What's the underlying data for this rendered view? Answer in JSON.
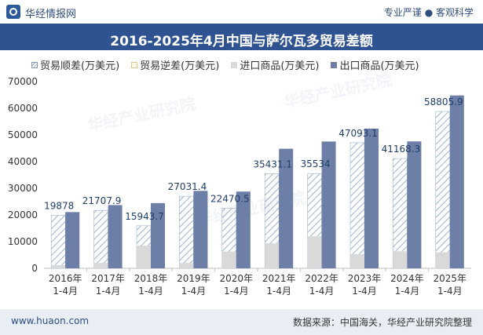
{
  "header": {
    "brand": "华经情报网",
    "slogan": "专业严谨 ● 客观科学"
  },
  "footer": {
    "site": "www.huaon.com",
    "source": "数据来源：中国海关，华经产业研究院整理"
  },
  "watermark": "华经产业研究院",
  "colors": {
    "surplus_hatch": "#9fb1cc",
    "deficit": "#fff9e6",
    "import": "#d9d9d9",
    "export": "#6d7fa6",
    "title_band": "#2f5390"
  },
  "chart_data": {
    "type": "bar",
    "title": "2016-2025年4月中国与萨尔瓦多贸易差额",
    "categories": [
      [
        "2016年",
        "1-4月"
      ],
      [
        "2017年",
        "1-4月"
      ],
      [
        "2018年",
        "1-4月"
      ],
      [
        "2019年",
        "1-4月"
      ],
      [
        "2020年",
        "1-4月"
      ],
      [
        "2021年",
        "1-4月"
      ],
      [
        "2022年",
        "1-4月"
      ],
      [
        "2023年",
        "1-4月"
      ],
      [
        "2024年",
        "1-4月"
      ],
      [
        "2025年",
        "1-4月"
      ]
    ],
    "series": [
      {
        "name": "贸易顺差(万美元)",
        "values": [
          19878,
          21707.9,
          15943.7,
          27031.4,
          22470.5,
          35431.1,
          35534,
          47093.1,
          41168.3,
          58805.9
        ]
      },
      {
        "name": "贸易逆差(万美元)",
        "values": [
          0,
          0,
          0,
          0,
          0,
          0,
          0,
          0,
          0,
          0
        ]
      },
      {
        "name": "进口商品(万美元)",
        "values": [
          1200,
          2000,
          8500,
          2000,
          6300,
          9400,
          12000,
          5300,
          6400,
          6000
        ]
      },
      {
        "name": "出口商品(万美元)",
        "values": [
          21078,
          23707.9,
          24443.7,
          29031.4,
          28770.5,
          44831.1,
          47534,
          52393.1,
          47568.3,
          64805.9
        ]
      }
    ],
    "data_labels": [
      "19878",
      "21707.9",
      "15943.7",
      "27031.4",
      "22470.5",
      "35431.1",
      "35534",
      "47093.1",
      "41168.3",
      "58805.9"
    ],
    "ylim": [
      0,
      70000
    ],
    "yticks": [
      0,
      10000,
      20000,
      30000,
      40000,
      50000,
      60000,
      70000
    ],
    "grid": false,
    "legend_position": "top-left"
  }
}
